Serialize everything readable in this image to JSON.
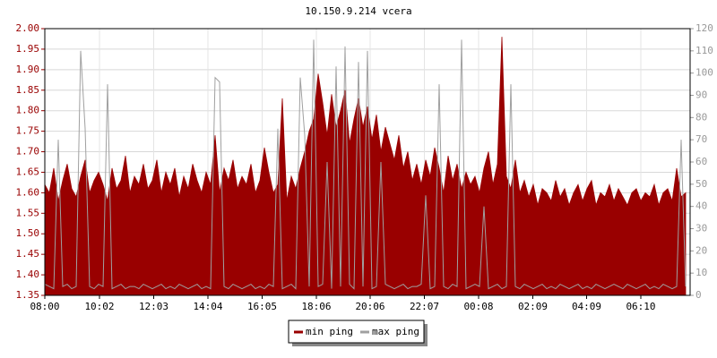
{
  "chart_data": {
    "type": "line",
    "title": "10.150.9.214 vcera",
    "x": [
      0,
      10,
      20,
      30,
      40,
      50,
      60,
      70,
      80,
      90,
      100,
      110,
      120,
      130,
      140,
      150,
      160,
      170,
      180,
      190,
      200,
      210,
      220,
      230,
      240,
      250,
      260,
      270,
      280,
      290,
      300,
      310,
      320,
      330,
      340,
      350,
      360,
      370,
      380,
      390,
      400,
      410,
      420,
      430,
      440,
      450,
      460,
      470,
      480,
      490,
      500,
      510,
      520,
      530,
      540,
      550,
      560,
      570,
      580,
      590,
      600,
      610,
      620,
      630,
      640,
      650,
      660,
      670,
      680,
      690,
      700,
      710,
      720,
      730,
      740,
      750,
      760,
      770,
      780,
      790,
      800,
      810,
      820,
      830,
      840,
      850,
      860,
      870,
      880,
      890,
      900,
      910,
      920,
      930,
      940,
      950,
      960,
      970,
      980,
      990,
      1000,
      1010,
      1020,
      1030,
      1040,
      1050,
      1060,
      1070,
      1080,
      1090,
      1100,
      1110,
      1120,
      1130,
      1140,
      1150,
      1160,
      1170,
      1180,
      1190,
      1200,
      1210,
      1220,
      1230,
      1240,
      1250,
      1260,
      1270,
      1280,
      1290,
      1300,
      1310,
      1320,
      1330,
      1340,
      1350,
      1360,
      1370,
      1380,
      1390,
      1400,
      1410,
      1420,
      1430
    ],
    "xlim": [
      0,
      1440
    ],
    "xticks": [
      {
        "value": 0,
        "label": "08:00"
      },
      {
        "value": 122,
        "label": "10:02"
      },
      {
        "value": 243,
        "label": "12:03"
      },
      {
        "value": 364,
        "label": "14:04"
      },
      {
        "value": 485,
        "label": "16:05"
      },
      {
        "value": 606,
        "label": "18:06"
      },
      {
        "value": 726,
        "label": "20:06"
      },
      {
        "value": 847,
        "label": "22:07"
      },
      {
        "value": 968,
        "label": "00:08"
      },
      {
        "value": 1089,
        "label": "02:09"
      },
      {
        "value": 1209,
        "label": "04:09"
      },
      {
        "value": 1330,
        "label": "06:10"
      }
    ],
    "ylim": [
      1.35,
      2.0
    ],
    "yticks": [
      {
        "value": 1.35,
        "label": "1.35"
      },
      {
        "value": 1.4,
        "label": "1.40"
      },
      {
        "value": 1.45,
        "label": "1.45"
      },
      {
        "value": 1.5,
        "label": "1.50"
      },
      {
        "value": 1.55,
        "label": "1.55"
      },
      {
        "value": 1.6,
        "label": "1.60"
      },
      {
        "value": 1.65,
        "label": "1.65"
      },
      {
        "value": 1.7,
        "label": "1.70"
      },
      {
        "value": 1.75,
        "label": "1.75"
      },
      {
        "value": 1.8,
        "label": "1.80"
      },
      {
        "value": 1.85,
        "label": "1.85"
      },
      {
        "value": 1.9,
        "label": "1.90"
      },
      {
        "value": 1.95,
        "label": "1.95"
      },
      {
        "value": 2.0,
        "label": "2.00"
      }
    ],
    "y2lim": [
      0,
      120
    ],
    "y2ticks": [
      0,
      10,
      20,
      30,
      40,
      50,
      60,
      70,
      80,
      90,
      100,
      110,
      120
    ],
    "grid": true,
    "series": [
      {
        "name": "min ping",
        "color": "#990000",
        "values": [
          1.62,
          1.6,
          1.66,
          1.58,
          1.63,
          1.67,
          1.61,
          1.59,
          1.64,
          1.68,
          1.6,
          1.63,
          1.65,
          1.62,
          1.58,
          1.66,
          1.61,
          1.63,
          1.69,
          1.6,
          1.64,
          1.62,
          1.67,
          1.61,
          1.63,
          1.68,
          1.6,
          1.65,
          1.62,
          1.66,
          1.59,
          1.64,
          1.61,
          1.67,
          1.63,
          1.6,
          1.65,
          1.62,
          1.74,
          1.6,
          1.66,
          1.63,
          1.68,
          1.61,
          1.64,
          1.62,
          1.67,
          1.6,
          1.63,
          1.71,
          1.65,
          1.6,
          1.62,
          1.83,
          1.58,
          1.64,
          1.61,
          1.66,
          1.7,
          1.75,
          1.78,
          1.89,
          1.82,
          1.74,
          1.84,
          1.76,
          1.8,
          1.85,
          1.72,
          1.78,
          1.83,
          1.76,
          1.81,
          1.73,
          1.79,
          1.7,
          1.76,
          1.72,
          1.68,
          1.74,
          1.66,
          1.7,
          1.63,
          1.67,
          1.62,
          1.68,
          1.64,
          1.71,
          1.66,
          1.6,
          1.69,
          1.63,
          1.67,
          1.61,
          1.65,
          1.62,
          1.64,
          1.6,
          1.66,
          1.7,
          1.62,
          1.67,
          1.98,
          1.64,
          1.61,
          1.68,
          1.6,
          1.63,
          1.59,
          1.62,
          1.57,
          1.61,
          1.6,
          1.58,
          1.63,
          1.59,
          1.61,
          1.57,
          1.6,
          1.62,
          1.58,
          1.61,
          1.63,
          1.57,
          1.6,
          1.59,
          1.62,
          1.58,
          1.61,
          1.59,
          1.57,
          1.6,
          1.61,
          1.58,
          1.6,
          1.59,
          1.62,
          1.57,
          1.6,
          1.61,
          1.58,
          1.66,
          1.59,
          1.6
        ]
      },
      {
        "name": "max ping",
        "color": "#a0a0a0",
        "axis": "y2",
        "values": [
          5,
          4,
          3,
          70,
          4,
          5,
          3,
          4,
          110,
          75,
          4,
          3,
          5,
          4,
          95,
          3,
          4,
          5,
          3,
          4,
          4,
          3,
          5,
          4,
          3,
          4,
          5,
          3,
          4,
          3,
          5,
          4,
          3,
          4,
          5,
          3,
          4,
          3,
          98,
          96,
          4,
          3,
          5,
          4,
          3,
          4,
          5,
          3,
          4,
          3,
          5,
          4,
          75,
          3,
          4,
          5,
          3,
          98,
          72,
          4,
          115,
          4,
          5,
          60,
          3,
          103,
          4,
          112,
          5,
          3,
          105,
          4,
          110,
          3,
          4,
          60,
          5,
          4,
          3,
          4,
          5,
          3,
          4,
          4,
          5,
          45,
          3,
          4,
          95,
          4,
          3,
          5,
          4,
          115,
          3,
          4,
          5,
          4,
          40,
          3,
          4,
          5,
          3,
          4,
          95,
          4,
          3,
          5,
          4,
          3,
          4,
          5,
          3,
          4,
          3,
          5,
          4,
          3,
          4,
          5,
          3,
          4,
          3,
          5,
          4,
          3,
          4,
          5,
          4,
          3,
          5,
          4,
          3,
          4,
          5,
          3,
          4,
          3,
          5,
          4,
          3,
          4,
          70,
          4
        ]
      }
    ]
  }
}
